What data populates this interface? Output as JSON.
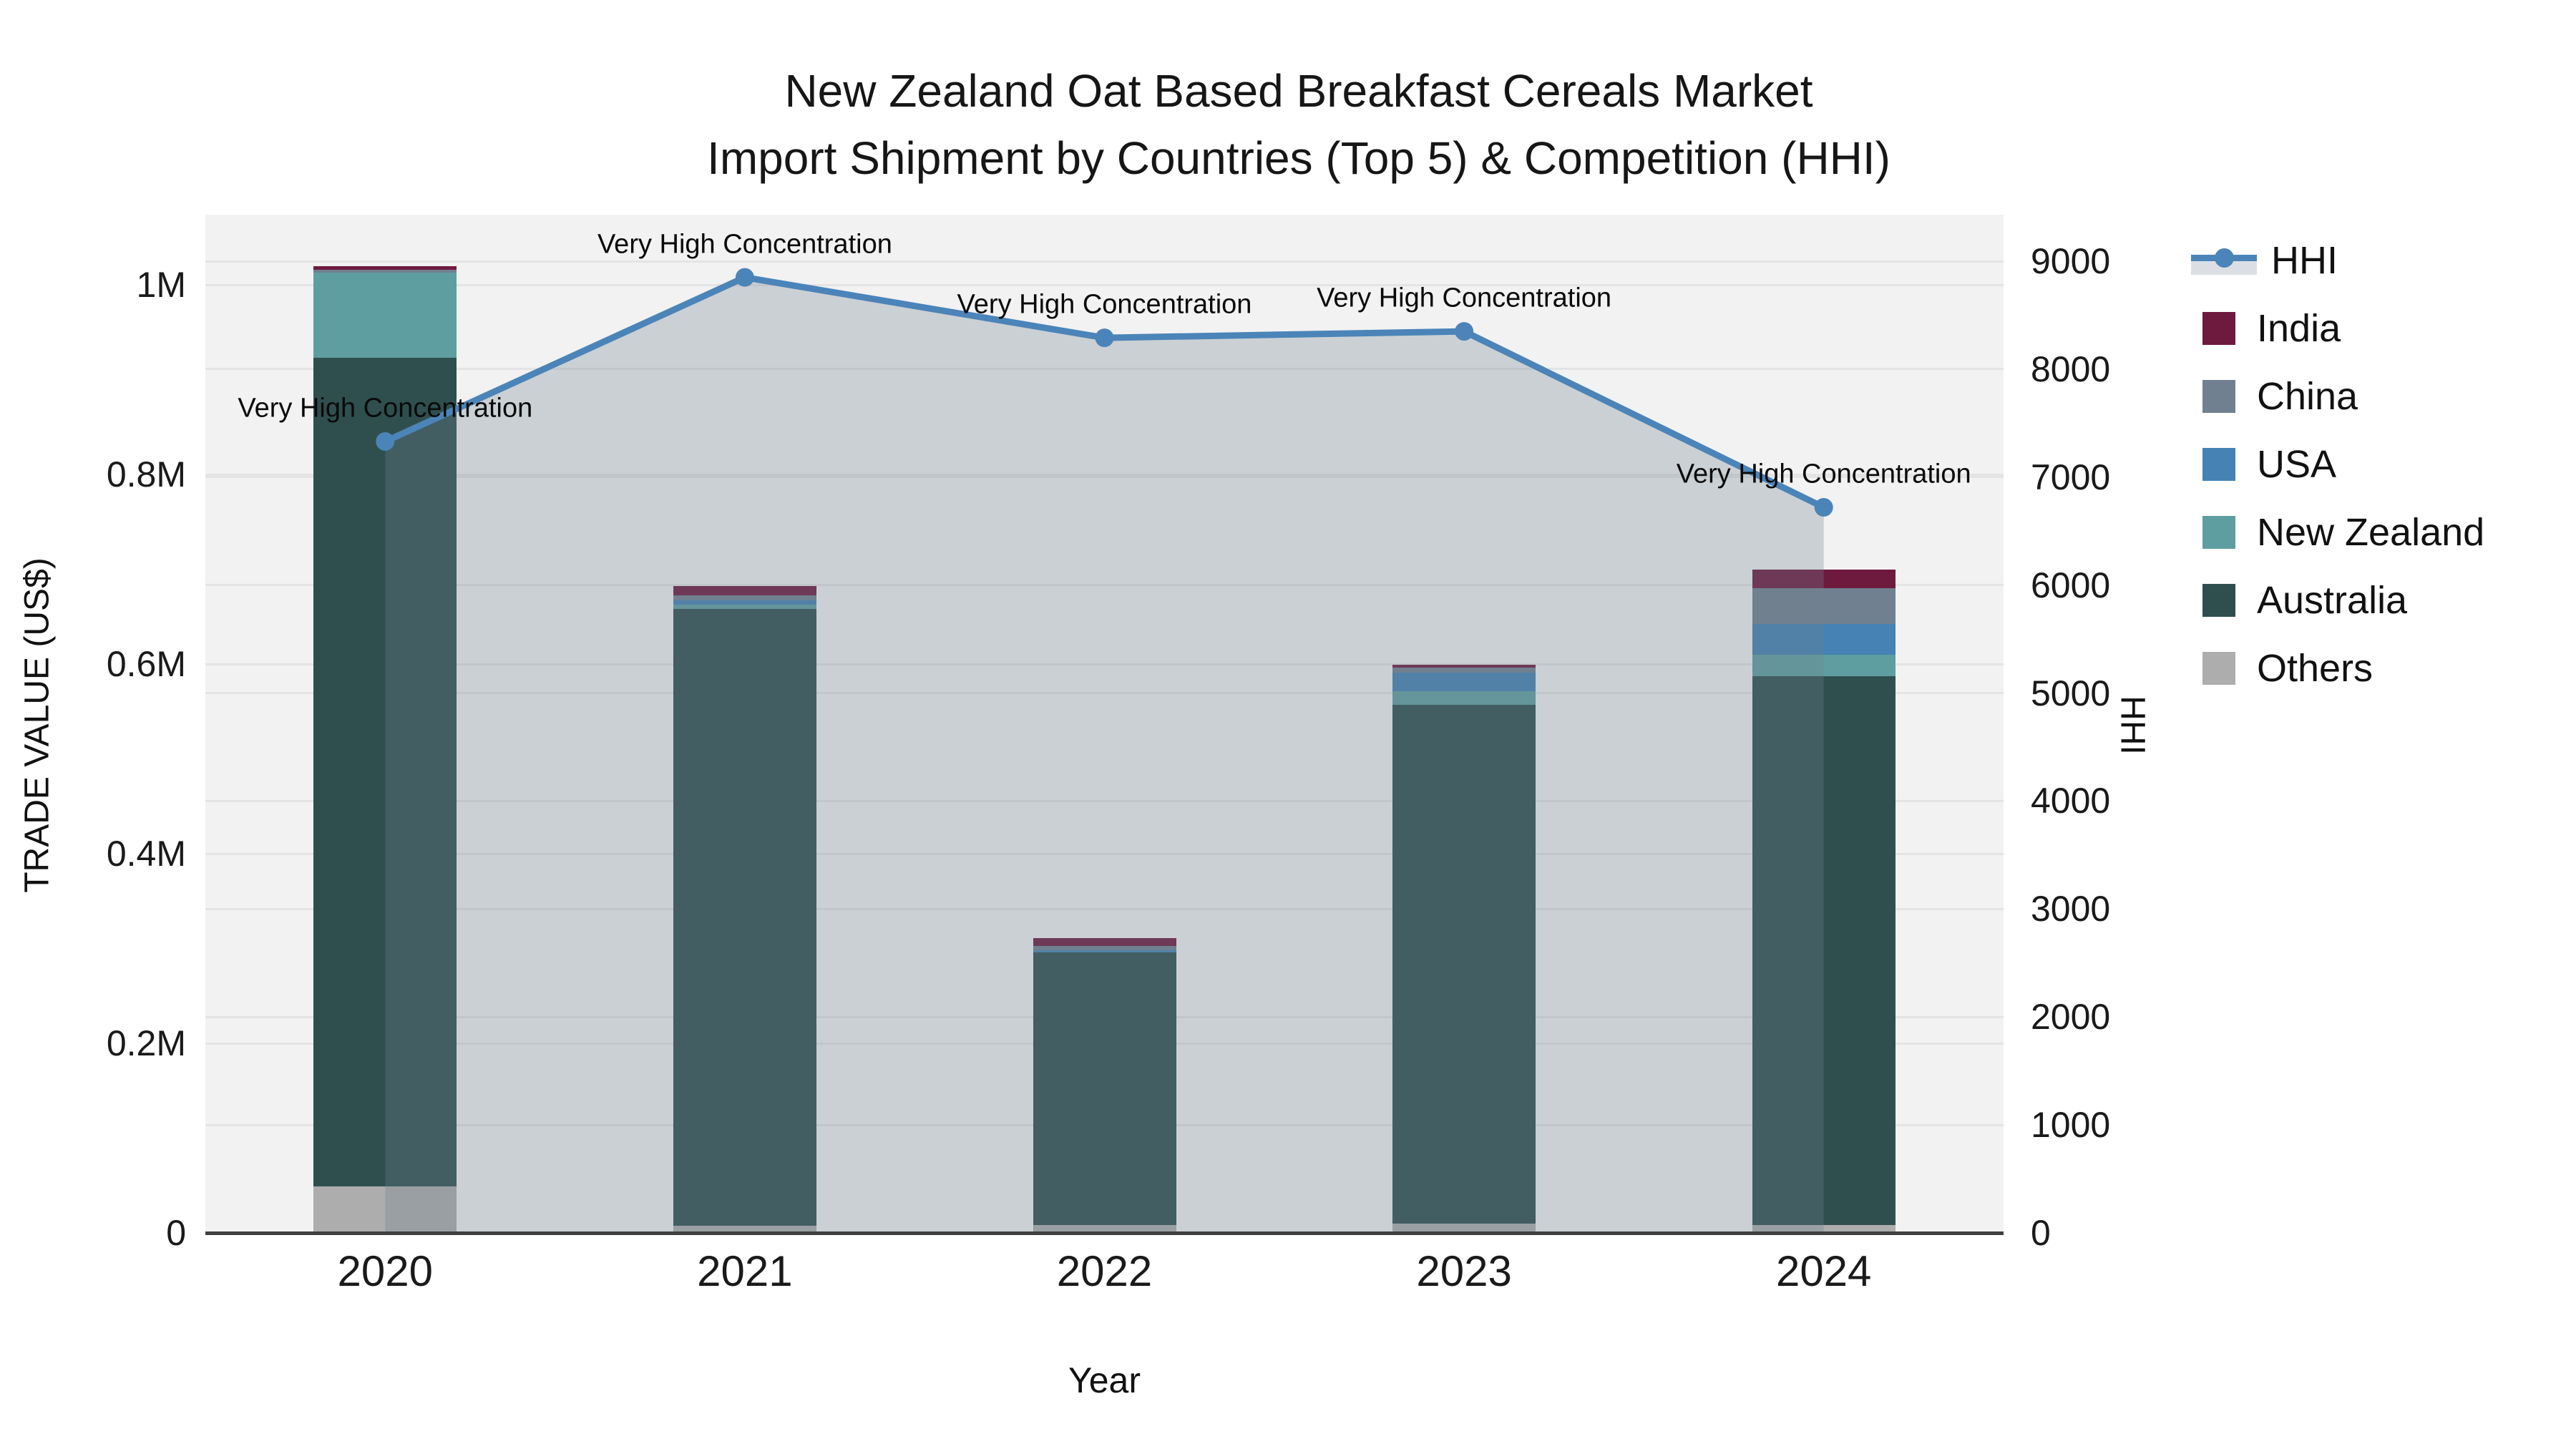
{
  "title": {
    "line1": "New Zealand Oat Based Breakfast Cereals Market",
    "line2": "Import Shipment by Countries (Top 5) & Competition (HHI)"
  },
  "axes": {
    "x_title": "Year",
    "y_left_title": "TRADE VALUE (US$)",
    "y_right_title": "HHI"
  },
  "legend": {
    "items": [
      "HHI",
      "India",
      "China",
      "USA",
      "New Zealand",
      "Australia",
      "Others"
    ]
  },
  "chart_data": {
    "type": "bar",
    "subtype": "stacked-bars-with-line-overlay",
    "categories": [
      "2020",
      "2021",
      "2022",
      "2023",
      "2024"
    ],
    "stack_note": "stacked bottom-to-top: Others, Australia, New Zealand, USA, China, India",
    "series": [
      {
        "name": "India",
        "color": "#6E1A3F",
        "values": [
          4000,
          10000,
          8000,
          3000,
          20000
        ]
      },
      {
        "name": "China",
        "color": "#708090",
        "values": [
          3000,
          5000,
          5000,
          5000,
          38000
        ]
      },
      {
        "name": "USA",
        "color": "#4682B4",
        "values": [
          0,
          4500,
          2000,
          20000,
          32000
        ]
      },
      {
        "name": "New Zealand",
        "color": "#5F9EA0",
        "values": [
          90000,
          4500,
          0,
          14000,
          23000
        ]
      },
      {
        "name": "Australia",
        "color": "#2F4F4F",
        "values": [
          874000,
          651000,
          288000,
          547000,
          579000
        ]
      },
      {
        "name": "Others",
        "color": "#ADADAD",
        "values": [
          49000,
          7500,
          8000,
          10000,
          8000
        ]
      }
    ],
    "hhi": {
      "name": "HHI",
      "color": "#4B84B8",
      "fill_color": "rgba(112,128,144,0.30)",
      "values": [
        7330,
        8850,
        8290,
        8350,
        6720
      ]
    },
    "annotations": [
      "Very High Concentration",
      "Very High Concentration",
      "Very High Concentration",
      "Very High Concentration",
      "Very High Concentration"
    ],
    "xlabel": "Year",
    "ylabel_left": "TRADE VALUE (US$)",
    "ylabel_right": "HHI",
    "y_left_ticks": [
      {
        "v": 0,
        "t": "0"
      },
      {
        "v": 200000,
        "t": "0.2M"
      },
      {
        "v": 400000,
        "t": "0.4M"
      },
      {
        "v": 600000,
        "t": "0.6M"
      },
      {
        "v": 800000,
        "t": "0.8M"
      },
      {
        "v": 1000000,
        "t": "1M"
      }
    ],
    "y_right_ticks": [
      {
        "v": 0,
        "t": "0"
      },
      {
        "v": 1000,
        "t": "1000"
      },
      {
        "v": 2000,
        "t": "2000"
      },
      {
        "v": 3000,
        "t": "3000"
      },
      {
        "v": 4000,
        "t": "4000"
      },
      {
        "v": 5000,
        "t": "5000"
      },
      {
        "v": 6000,
        "t": "6000"
      },
      {
        "v": 7000,
        "t": "7000"
      },
      {
        "v": 8000,
        "t": "8000"
      },
      {
        "v": 9000,
        "t": "9000"
      }
    ],
    "ylim_left": [
      0,
      1074000
    ],
    "ylim_right": [
      0,
      9430
    ],
    "grid": true,
    "legend_position": "right"
  }
}
